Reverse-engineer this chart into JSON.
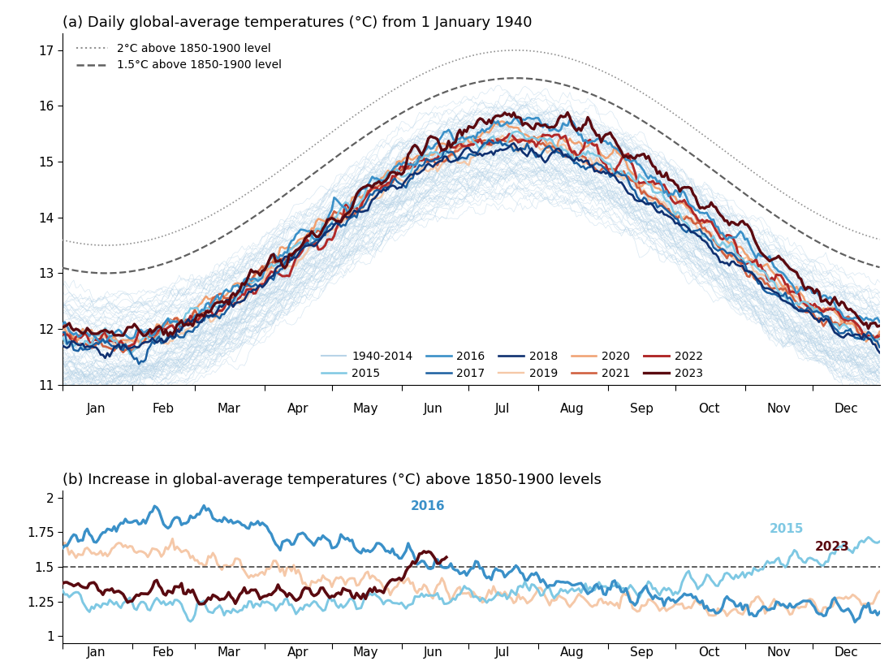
{
  "title_a": "(a) Daily global-average temperatures (°C) from 1 January 1940",
  "title_b": "(b) Increase in global-average temperatures (°C) above 1850-1900 levels",
  "months": [
    "Jan",
    "Feb",
    "Mar",
    "Apr",
    "May",
    "Jun",
    "Jul",
    "Aug",
    "Sep",
    "Oct",
    "Nov",
    "Dec"
  ],
  "ylim_a": [
    11.0,
    17.3
  ],
  "yticks_a": [
    11,
    12,
    13,
    14,
    15,
    16,
    17
  ],
  "ylim_b": [
    0.95,
    2.05
  ],
  "yticks_b": [
    1.0,
    1.25,
    1.5,
    1.75,
    2.0
  ],
  "colors": {
    "background_years": "#b8d4e8",
    "2015": "#7ec8e3",
    "2016": "#3a90c8",
    "2017": "#1a5fa0",
    "2018": "#0f3070",
    "2019": "#f5c8a8",
    "2020": "#f0a070",
    "2021": "#d06040",
    "2022": "#b02828",
    "2023": "#5a0a10"
  },
  "ref_2c_color": "#909090",
  "ref_15c_color": "#606060",
  "line_15c_b_color": "#505050",
  "title_fontsize": 13,
  "legend_fontsize": 10,
  "tick_fontsize": 11,
  "figsize": [
    11.0,
    8.25
  ],
  "dpi": 100
}
